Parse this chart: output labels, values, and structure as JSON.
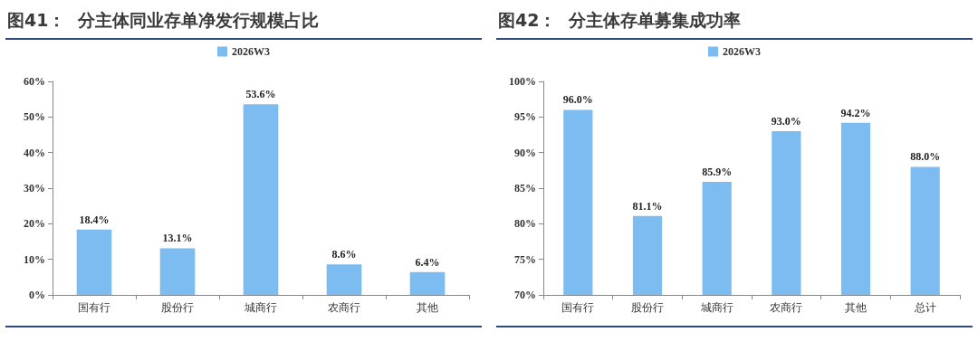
{
  "chart_data": [
    {
      "type": "bar",
      "title": "图41：  分主体同业存单净发行规模占比",
      "categories": [
        "国有行",
        "股份行",
        "城商行",
        "农商行",
        "其他"
      ],
      "series": [
        {
          "name": "2026W3",
          "color": "#7cbcf0",
          "values": [
            18.4,
            13.1,
            53.6,
            8.6,
            6.4
          ],
          "value_labels": [
            "18.4%",
            "13.1%",
            "53.6%",
            "8.6%",
            "6.4%"
          ]
        }
      ],
      "ylim": [
        0,
        60
      ],
      "yticks": [
        {
          "value": 0,
          "label": "0%"
        },
        {
          "value": 10,
          "label": "10%"
        },
        {
          "value": 20,
          "label": "20%"
        },
        {
          "value": 30,
          "label": "30%"
        },
        {
          "value": 40,
          "label": "40%"
        },
        {
          "value": 50,
          "label": "50%"
        },
        {
          "value": 60,
          "label": "60%"
        }
      ],
      "grid": false,
      "legend": "top"
    },
    {
      "type": "bar",
      "title": "图42：  分主体存单募集成功率",
      "categories": [
        "国有行",
        "股份行",
        "城商行",
        "农商行",
        "其他",
        "总计"
      ],
      "series": [
        {
          "name": "2026W3",
          "color": "#7cbcf0",
          "values": [
            96.0,
            81.1,
            85.9,
            93.0,
            94.2,
            88.0
          ],
          "value_labels": [
            "96.0%",
            "81.1%",
            "85.9%",
            "93.0%",
            "94.2%",
            "88.0%"
          ]
        }
      ],
      "ylim": [
        70,
        100
      ],
      "yticks": [
        {
          "value": 70,
          "label": "70%"
        },
        {
          "value": 75,
          "label": "75%"
        },
        {
          "value": 80,
          "label": "80%"
        },
        {
          "value": 85,
          "label": "85%"
        },
        {
          "value": 90,
          "label": "90%"
        },
        {
          "value": 95,
          "label": "95%"
        },
        {
          "value": 100,
          "label": "100%"
        }
      ],
      "grid": false,
      "legend": "top"
    }
  ]
}
